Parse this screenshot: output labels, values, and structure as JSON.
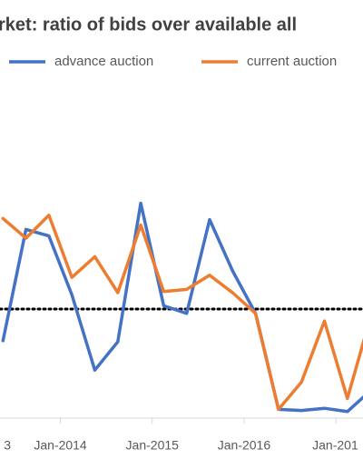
{
  "chart_data": {
    "type": "line",
    "title": "rket: ratio of bids over available all",
    "categories": [
      "3",
      null,
      null,
      null,
      "Jan-2014",
      null,
      null,
      null,
      "Jan-2015",
      null,
      null,
      null,
      "Jan-2016",
      null,
      null,
      null,
      "Jan-201",
      null
    ],
    "series": [
      {
        "name": "advance auction",
        "color": "#4472c4",
        "values": [
          null,
          0.71,
          1.73,
          1.67,
          1.13,
          0.44,
          0.7,
          1.97,
          1.03,
          0.96,
          1.82,
          1.35,
          0.96,
          0.08,
          0.07,
          0.09,
          0.06,
          0.25
        ]
      },
      {
        "name": "current auction",
        "color": "#ed7d31",
        "values": [
          null,
          1.83,
          1.65,
          1.86,
          1.29,
          1.48,
          1.15,
          1.77,
          1.16,
          1.18,
          1.31,
          1.15,
          0.96,
          0.08,
          0.33,
          0.89,
          0.18,
          0.92
        ]
      }
    ],
    "reference_line": 1,
    "ylim": [
      0,
      3
    ],
    "legend": "top"
  }
}
